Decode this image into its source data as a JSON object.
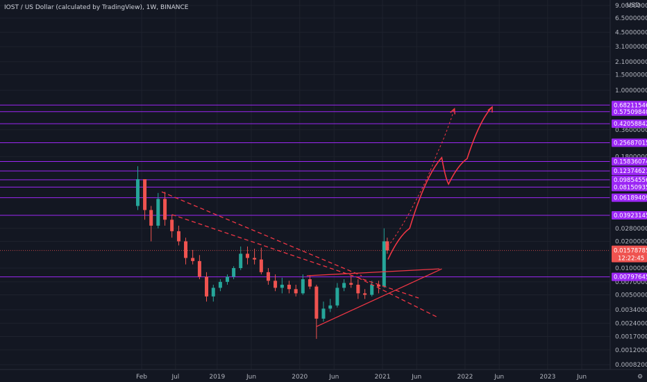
{
  "header": {
    "title": "IOST / US Dollar (calculated by TradingView), 1W, BINANCE"
  },
  "colors": {
    "background": "#131722",
    "axis_text": "#b2b5be",
    "level_line": "#9c27f5",
    "level_label_bg": "#9c27f5",
    "trend_line": "#f23645",
    "candle_up": "#26a69a",
    "candle_down": "#ef5350",
    "price_label_bg": "#ef5350"
  },
  "chart_data": {
    "type": "candlestick",
    "title": "IOST / US Dollar (calculated by TradingView), 1W, BINANCE",
    "y_scale": "log",
    "y_unit": "USD",
    "ylim": [
      0.0007,
      12.5
    ],
    "y_ticks": [
      {
        "label": "9.00000000",
        "value": 9.0
      },
      {
        "label": "6.50000000",
        "value": 6.5
      },
      {
        "label": "4.50000000",
        "value": 4.5
      },
      {
        "label": "3.10000000",
        "value": 3.1
      },
      {
        "label": "2.10000000",
        "value": 2.1
      },
      {
        "label": "1.50000000",
        "value": 1.5
      },
      {
        "label": "1.00000000",
        "value": 1.0
      },
      {
        "label": "0.36000000",
        "value": 0.36
      },
      {
        "label": "0.18000000",
        "value": 0.18
      },
      {
        "label": "0.02800000",
        "value": 0.028
      },
      {
        "label": "0.02000000",
        "value": 0.02
      },
      {
        "label": "0.01000000",
        "value": 0.01
      },
      {
        "label": "0.00700000",
        "value": 0.007
      },
      {
        "label": "0.00500000",
        "value": 0.005
      },
      {
        "label": "0.00340000",
        "value": 0.0034
      },
      {
        "label": "0.00240000",
        "value": 0.0024
      },
      {
        "label": "0.00170000",
        "value": 0.0017
      },
      {
        "label": "0.00120000",
        "value": 0.0012
      },
      {
        "label": "0.00082000",
        "value": 0.00082
      }
    ],
    "x_ticks": [
      {
        "label": "Feb",
        "date": "2018-02-01"
      },
      {
        "label": "Jul",
        "date": "2018-07-01"
      },
      {
        "label": "2019",
        "date": "2019-01-01"
      },
      {
        "label": "Jun",
        "date": "2019-06-01"
      },
      {
        "label": "2020",
        "date": "2020-01-01"
      },
      {
        "label": "Jun",
        "date": "2020-06-01"
      },
      {
        "label": "2021",
        "date": "2021-01-01"
      },
      {
        "label": "Jun",
        "date": "2021-06-01"
      },
      {
        "label": "2022",
        "date": "2022-01-01"
      },
      {
        "label": "Jun",
        "date": "2022-06-01"
      },
      {
        "label": "2023",
        "date": "2023-01-01"
      },
      {
        "label": "Jun",
        "date": "2023-06-01"
      }
    ],
    "xlim": [
      "2017-11-20",
      "2023-09-01"
    ],
    "horizontal_levels": [
      {
        "label": "0.68211546",
        "value": 0.68211546
      },
      {
        "label": "0.57509840",
        "value": 0.5750984
      },
      {
        "label": "0.42058842",
        "value": 0.42058842
      },
      {
        "label": "0.25687015",
        "value": 0.25687015
      },
      {
        "label": "0.15836074",
        "value": 0.15836074
      },
      {
        "label": "0.12374621",
        "value": 0.12374621
      },
      {
        "label": "0.09854556",
        "value": 0.09854556
      },
      {
        "label": "0.08150935",
        "value": 0.08150935
      },
      {
        "label": "0.06189409",
        "value": 0.06189409
      },
      {
        "label": "0.03923145",
        "value": 0.03923145
      },
      {
        "label": "0.00797645",
        "value": 0.00797645
      }
    ],
    "current_price": {
      "label": "0.01578785",
      "value": 0.01578785,
      "countdown": "12:22:45"
    },
    "candles_monthly_close": [
      {
        "date": "2018-01-15",
        "open": 0.05,
        "high": 0.14,
        "low": 0.045,
        "close": 0.1
      },
      {
        "date": "2018-02-15",
        "open": 0.1,
        "high": 0.1,
        "low": 0.035,
        "close": 0.045
      },
      {
        "date": "2018-03-15",
        "open": 0.045,
        "high": 0.05,
        "low": 0.02,
        "close": 0.03
      },
      {
        "date": "2018-04-15",
        "open": 0.03,
        "high": 0.07,
        "low": 0.028,
        "close": 0.06
      },
      {
        "date": "2018-05-15",
        "open": 0.06,
        "high": 0.072,
        "low": 0.03,
        "close": 0.035
      },
      {
        "date": "2018-06-15",
        "open": 0.035,
        "high": 0.04,
        "low": 0.022,
        "close": 0.026
      },
      {
        "date": "2018-07-15",
        "open": 0.026,
        "high": 0.03,
        "low": 0.018,
        "close": 0.02
      },
      {
        "date": "2018-08-15",
        "open": 0.02,
        "high": 0.022,
        "low": 0.011,
        "close": 0.013
      },
      {
        "date": "2018-09-15",
        "open": 0.013,
        "high": 0.016,
        "low": 0.011,
        "close": 0.012
      },
      {
        "date": "2018-10-15",
        "open": 0.012,
        "high": 0.014,
        "low": 0.0075,
        "close": 0.008
      },
      {
        "date": "2018-11-15",
        "open": 0.008,
        "high": 0.009,
        "low": 0.0042,
        "close": 0.0048
      },
      {
        "date": "2018-12-15",
        "open": 0.0048,
        "high": 0.0065,
        "low": 0.0042,
        "close": 0.006
      },
      {
        "date": "2019-01-15",
        "open": 0.006,
        "high": 0.0075,
        "low": 0.0055,
        "close": 0.007
      },
      {
        "date": "2019-02-15",
        "open": 0.007,
        "high": 0.0085,
        "low": 0.0065,
        "close": 0.008
      },
      {
        "date": "2019-03-15",
        "open": 0.008,
        "high": 0.0105,
        "low": 0.0075,
        "close": 0.01
      },
      {
        "date": "2019-04-15",
        "open": 0.01,
        "high": 0.0175,
        "low": 0.0095,
        "close": 0.0145
      },
      {
        "date": "2019-05-15",
        "open": 0.0145,
        "high": 0.0175,
        "low": 0.011,
        "close": 0.013
      },
      {
        "date": "2019-06-15",
        "open": 0.013,
        "high": 0.0165,
        "low": 0.011,
        "close": 0.0125
      },
      {
        "date": "2019-07-15",
        "open": 0.0125,
        "high": 0.017,
        "low": 0.0085,
        "close": 0.009
      },
      {
        "date": "2019-08-15",
        "open": 0.009,
        "high": 0.01,
        "low": 0.0065,
        "close": 0.0072
      },
      {
        "date": "2019-09-15",
        "open": 0.0072,
        "high": 0.0085,
        "low": 0.0055,
        "close": 0.006
      },
      {
        "date": "2019-10-15",
        "open": 0.006,
        "high": 0.0078,
        "low": 0.0052,
        "close": 0.0065
      },
      {
        "date": "2019-11-15",
        "open": 0.0065,
        "high": 0.0072,
        "low": 0.0052,
        "close": 0.0058
      },
      {
        "date": "2019-12-15",
        "open": 0.0058,
        "high": 0.0065,
        "low": 0.0048,
        "close": 0.0052
      },
      {
        "date": "2020-01-15",
        "open": 0.0052,
        "high": 0.0085,
        "low": 0.005,
        "close": 0.0075
      },
      {
        "date": "2020-02-15",
        "open": 0.0075,
        "high": 0.0082,
        "low": 0.0058,
        "close": 0.0062
      },
      {
        "date": "2020-03-15",
        "open": 0.0062,
        "high": 0.0065,
        "low": 0.0016,
        "close": 0.0027
      },
      {
        "date": "2020-04-15",
        "open": 0.0027,
        "high": 0.0042,
        "low": 0.0025,
        "close": 0.0035
      },
      {
        "date": "2020-05-15",
        "open": 0.0035,
        "high": 0.0045,
        "low": 0.0032,
        "close": 0.0038
      },
      {
        "date": "2020-06-15",
        "open": 0.0038,
        "high": 0.0068,
        "low": 0.0036,
        "close": 0.006
      },
      {
        "date": "2020-07-15",
        "open": 0.006,
        "high": 0.0075,
        "low": 0.0055,
        "close": 0.0068
      },
      {
        "date": "2020-08-15",
        "open": 0.0068,
        "high": 0.0082,
        "low": 0.006,
        "close": 0.0065
      },
      {
        "date": "2020-09-15",
        "open": 0.0065,
        "high": 0.0075,
        "low": 0.0045,
        "close": 0.0052
      },
      {
        "date": "2020-10-15",
        "open": 0.0052,
        "high": 0.0058,
        "low": 0.0045,
        "close": 0.005
      },
      {
        "date": "2020-11-15",
        "open": 0.005,
        "high": 0.0072,
        "low": 0.0048,
        "close": 0.0065
      },
      {
        "date": "2020-12-15",
        "open": 0.0065,
        "high": 0.0072,
        "low": 0.0052,
        "close": 0.0062
      },
      {
        "date": "2021-01-08",
        "open": 0.0062,
        "high": 0.028,
        "low": 0.006,
        "close": 0.02
      },
      {
        "date": "2021-01-22",
        "open": 0.02,
        "high": 0.022,
        "low": 0.0145,
        "close": 0.01578785
      }
    ],
    "drawings": [
      {
        "kind": "dashed-trendline",
        "from": {
          "date": "2018-05-01",
          "value": 0.072
        },
        "to": {
          "date": "2020-10-01",
          "value": 0.0082
        }
      },
      {
        "kind": "dashed-trendline",
        "from": {
          "date": "2018-06-15",
          "value": 0.04
        },
        "to": {
          "date": "2021-06-10",
          "value": 0.0046
        }
      },
      {
        "kind": "dashed-trendline",
        "from": {
          "date": "2020-09-15",
          "value": 0.0078
        },
        "to": {
          "date": "2021-09-01",
          "value": 0.0028
        }
      },
      {
        "kind": "trendline",
        "from": {
          "date": "2020-02-01",
          "value": 0.0082
        },
        "to": {
          "date": "2021-09-10",
          "value": 0.0098
        }
      },
      {
        "kind": "trendline",
        "from": {
          "date": "2020-03-15",
          "value": 0.0022
        },
        "to": {
          "date": "2021-09-20",
          "value": 0.0098
        }
      },
      {
        "kind": "projection-path",
        "dashed": true,
        "points": [
          {
            "date": "2021-01-25",
            "value": 0.0175
          },
          {
            "date": "2021-06-01",
            "value": 0.06
          },
          {
            "date": "2021-09-01",
            "value": 0.2
          },
          {
            "date": "2021-11-15",
            "value": 0.62
          }
        ]
      },
      {
        "kind": "projection-path",
        "dashed": false,
        "points": [
          {
            "date": "2021-01-25",
            "value": 0.0125
          },
          {
            "date": "2021-05-01",
            "value": 0.028
          },
          {
            "date": "2021-09-20",
            "value": 0.175
          },
          {
            "date": "2021-10-20",
            "value": 0.088
          },
          {
            "date": "2022-01-10",
            "value": 0.17
          },
          {
            "date": "2022-05-01",
            "value": 0.65
          }
        ]
      }
    ]
  }
}
